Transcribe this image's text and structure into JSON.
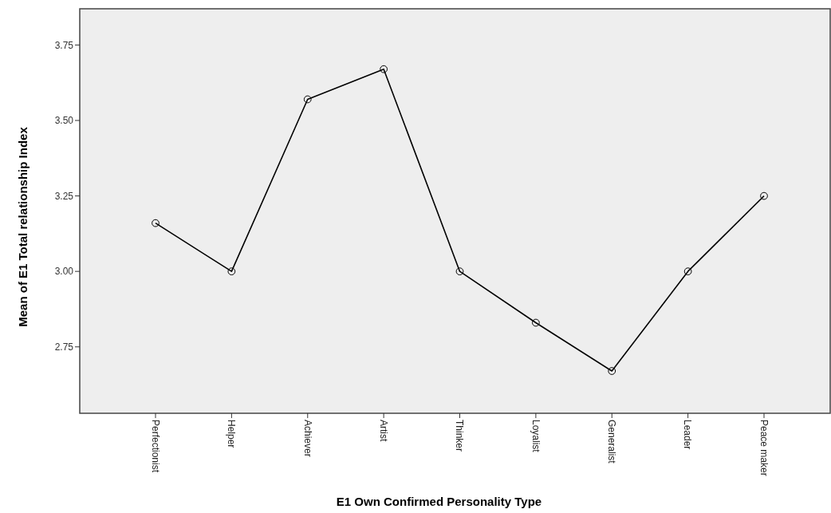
{
  "chart_data": {
    "type": "line",
    "xlabel": "E1 Own Confirmed Personality Type",
    "ylabel": "Mean of E1 Total relationship Index",
    "categories": [
      "Perfectionist",
      "Helper",
      "Achiever",
      "Artist",
      "Thinker",
      "Loyalist",
      "Generalist",
      "Leader",
      "Peace maker"
    ],
    "series": [
      {
        "color": "#000000",
        "values": [
          3.16,
          3.0,
          3.57,
          3.67,
          3.0,
          2.83,
          2.67,
          3.0,
          3.25
        ]
      }
    ],
    "ylim": [
      2.53,
      3.87
    ],
    "yticks": [
      {
        "value": 2.75,
        "label": "2.75"
      },
      {
        "value": 3.0,
        "label": "3.00"
      },
      {
        "value": 3.25,
        "label": "3.25"
      },
      {
        "value": 3.5,
        "label": "3.50"
      },
      {
        "value": 3.75,
        "label": "3.75"
      }
    ],
    "marker": "circle",
    "line_style": "solid",
    "grid": false
  }
}
